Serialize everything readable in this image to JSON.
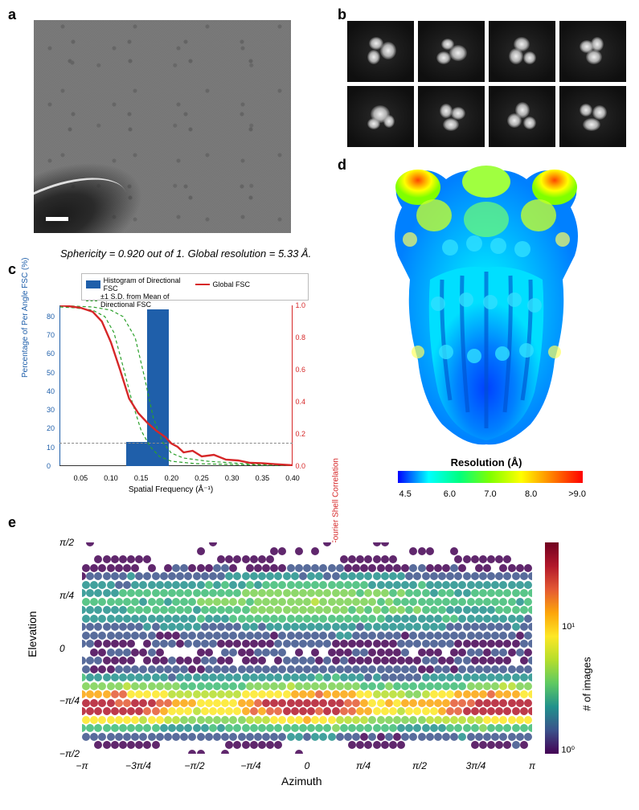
{
  "labels": {
    "a": "a",
    "b": "b",
    "c": "c",
    "d": "d",
    "e": "e"
  },
  "sphericity_text": "Sphericity = 0.920 out of 1. Global resolution = 5.33 Å.",
  "fsc": {
    "legend": {
      "hist": "Histogram of Directional FSC",
      "global": "Global FSC",
      "sd": "±1 S.D. from Mean of Directional FSC"
    },
    "y_left_label": "Percentage of Per Angle FSC (%)",
    "y_right_label": "Directional Fourier Shell Correlation",
    "x_label": "Spatial Frequency (Å⁻¹)",
    "y_left_ticks": [
      0,
      10,
      20,
      30,
      40,
      50,
      60,
      70,
      80
    ],
    "y_right_ticks": [
      "0.0",
      "0.2",
      "0.4",
      "0.6",
      "0.8",
      "1.0"
    ],
    "x_ticks": [
      "0.05",
      "0.10",
      "0.15",
      "0.20",
      "0.25",
      "0.30",
      "0.35",
      "0.40"
    ],
    "xlim": [
      0.015,
      0.4
    ],
    "threshold_y_right": 0.143,
    "hist_bars": [
      {
        "x": 0.125,
        "w": 0.035,
        "h": 12.7
      },
      {
        "x": 0.16,
        "w": 0.035,
        "h": 84
      }
    ],
    "global_fsc_points": [
      [
        0.016,
        1.0
      ],
      [
        0.03,
        0.995
      ],
      [
        0.05,
        0.985
      ],
      [
        0.07,
        0.96
      ],
      [
        0.085,
        0.9
      ],
      [
        0.1,
        0.77
      ],
      [
        0.115,
        0.6
      ],
      [
        0.13,
        0.42
      ],
      [
        0.145,
        0.33
      ],
      [
        0.16,
        0.27
      ],
      [
        0.175,
        0.22
      ],
      [
        0.19,
        0.18
      ],
      [
        0.2,
        0.14
      ],
      [
        0.21,
        0.12
      ],
      [
        0.22,
        0.085
      ],
      [
        0.235,
        0.095
      ],
      [
        0.25,
        0.06
      ],
      [
        0.27,
        0.07
      ],
      [
        0.29,
        0.04
      ],
      [
        0.31,
        0.035
      ],
      [
        0.33,
        0.02
      ],
      [
        0.35,
        0.018
      ],
      [
        0.37,
        0.012
      ],
      [
        0.4,
        0.005
      ]
    ],
    "sd_upper_points": [
      [
        0.016,
        1.0
      ],
      [
        0.04,
        0.995
      ],
      [
        0.07,
        0.99
      ],
      [
        0.1,
        0.97
      ],
      [
        0.12,
        0.93
      ],
      [
        0.14,
        0.8
      ],
      [
        0.155,
        0.56
      ],
      [
        0.17,
        0.3
      ],
      [
        0.185,
        0.15
      ],
      [
        0.2,
        0.08
      ],
      [
        0.22,
        0.05
      ],
      [
        0.26,
        0.03
      ],
      [
        0.32,
        0.015
      ],
      [
        0.4,
        0.005
      ]
    ],
    "sd_lower_points": [
      [
        0.016,
        0.99
      ],
      [
        0.04,
        0.985
      ],
      [
        0.07,
        0.97
      ],
      [
        0.09,
        0.93
      ],
      [
        0.105,
        0.83
      ],
      [
        0.12,
        0.62
      ],
      [
        0.135,
        0.4
      ],
      [
        0.15,
        0.22
      ],
      [
        0.165,
        0.12
      ],
      [
        0.18,
        0.06
      ],
      [
        0.2,
        0.03
      ],
      [
        0.24,
        0.015
      ],
      [
        0.3,
        0.01
      ],
      [
        0.4,
        0.003
      ]
    ],
    "colors": {
      "hist": "#1f5faa",
      "global": "#d62728",
      "sd": "#2ca02c",
      "threshold": "#888888"
    }
  },
  "resolution_bar": {
    "label": "Resolution (Å)",
    "ticks": [
      "4.5",
      "6.0",
      "7.0",
      "8.0",
      ">9.0"
    ],
    "tick_positions_pct": [
      4,
      28,
      50,
      72,
      97
    ]
  },
  "orient": {
    "y_label": "Elevation",
    "x_label": "Azimuth",
    "cbar_label": "# of images",
    "y_ticks": [
      "π/2",
      "π/4",
      "0",
      "−π/4",
      "−π/2"
    ],
    "x_ticks": [
      "−π",
      "−3π/4",
      "−π/2",
      "−π/4",
      "0",
      "π/4",
      "π/2",
      "3π/4",
      "π"
    ],
    "cbar_ticks": [
      {
        "label": "10¹",
        "pos_pct": 40
      },
      {
        "label": "10⁰",
        "pos_pct": 98
      }
    ],
    "colors": {
      "low": "#440154",
      "mid_low": "#3b528b",
      "mid": "#21918c",
      "mid_high": "#7ad151",
      "high": "#fde725",
      "hot1": "#fca50a",
      "hot2": "#e45933",
      "hot3": "#b2182b"
    }
  }
}
